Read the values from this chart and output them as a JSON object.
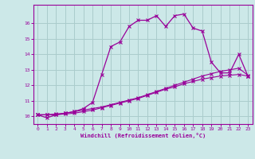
{
  "xlabel": "Windchill (Refroidissement éolien,°C)",
  "background_color": "#cce8e8",
  "grid_color": "#aacccc",
  "line_color": "#990099",
  "xlim": [
    -0.5,
    23.5
  ],
  "ylim": [
    9.5,
    17.2
  ],
  "yticks": [
    10,
    11,
    12,
    13,
    14,
    15,
    16
  ],
  "xticks": [
    0,
    1,
    2,
    3,
    4,
    5,
    6,
    7,
    8,
    9,
    10,
    11,
    12,
    13,
    14,
    15,
    16,
    17,
    18,
    19,
    20,
    21,
    22,
    23
  ],
  "series1_x": [
    0,
    1,
    2,
    3,
    4,
    5,
    6,
    7,
    8,
    9,
    10,
    11,
    12,
    13,
    14,
    15,
    16,
    17,
    18,
    19,
    20,
    21,
    22,
    23
  ],
  "series1_y": [
    10.1,
    9.9,
    10.1,
    10.2,
    10.3,
    10.5,
    10.9,
    12.7,
    14.5,
    14.8,
    15.8,
    16.2,
    16.2,
    16.5,
    15.8,
    16.5,
    16.6,
    15.7,
    15.5,
    13.5,
    12.8,
    12.8,
    14.0,
    12.6
  ],
  "series2_x": [
    0,
    1,
    2,
    3,
    4,
    5,
    6,
    7,
    8,
    9,
    10,
    11,
    12,
    13,
    14,
    15,
    16,
    17,
    18,
    19,
    20,
    21,
    22,
    23
  ],
  "series2_y": [
    10.1,
    10.1,
    10.15,
    10.2,
    10.3,
    10.4,
    10.5,
    10.6,
    10.75,
    10.9,
    11.05,
    11.2,
    11.4,
    11.6,
    11.8,
    12.0,
    12.2,
    12.4,
    12.6,
    12.75,
    12.9,
    13.0,
    13.1,
    12.65
  ],
  "series3_x": [
    0,
    1,
    2,
    3,
    4,
    5,
    6,
    7,
    8,
    9,
    10,
    11,
    12,
    13,
    14,
    15,
    16,
    17,
    18,
    19,
    20,
    21,
    22,
    23
  ],
  "series3_y": [
    10.1,
    10.1,
    10.1,
    10.15,
    10.2,
    10.3,
    10.4,
    10.55,
    10.7,
    10.85,
    11.0,
    11.15,
    11.35,
    11.55,
    11.75,
    11.9,
    12.1,
    12.25,
    12.4,
    12.5,
    12.6,
    12.65,
    12.7,
    12.6
  ]
}
